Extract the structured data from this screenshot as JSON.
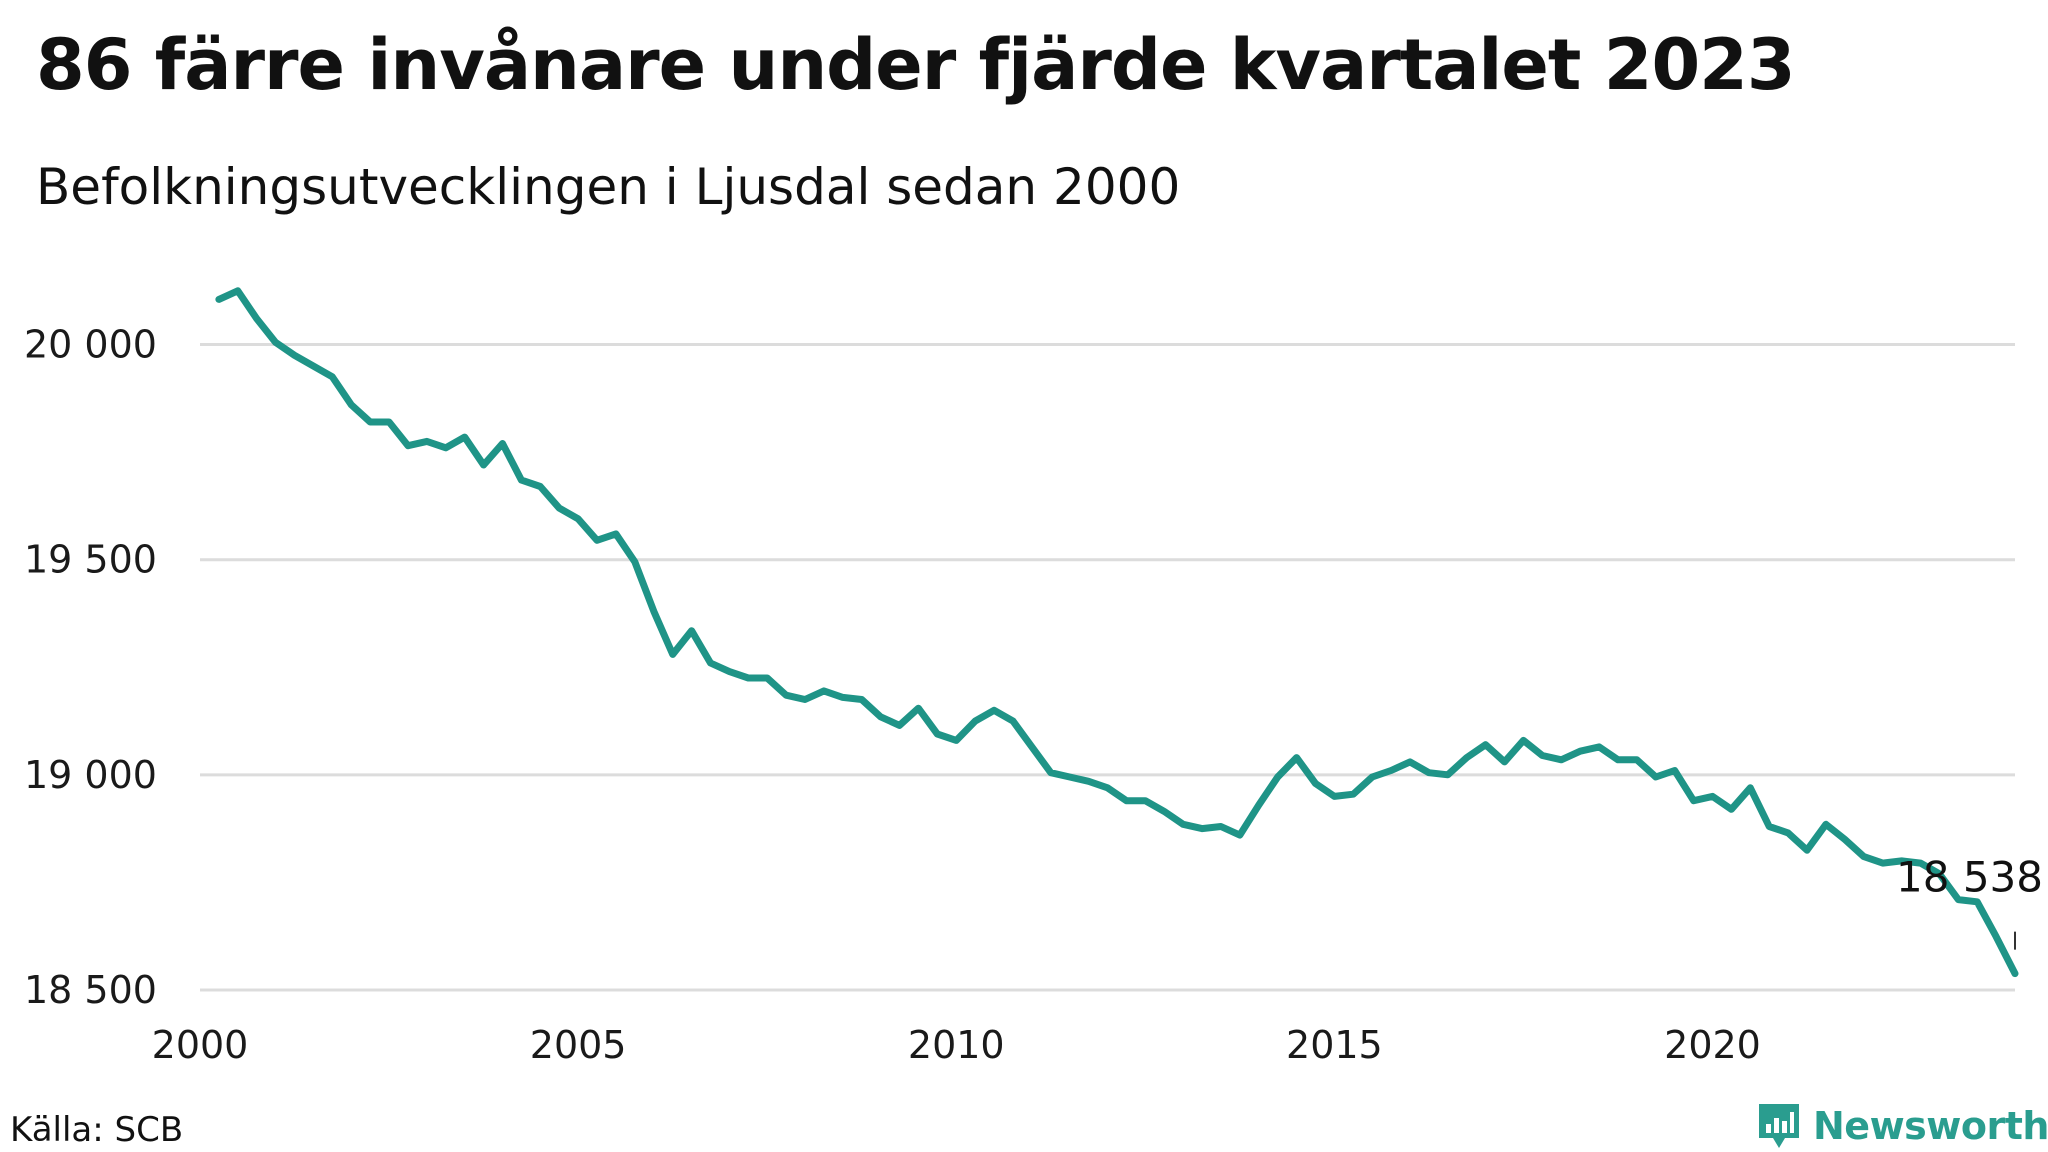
{
  "title": "86 färre invånare under fjärde kvartalet 2023",
  "subtitle": "Befolkningsutvecklingen i Ljusdal sedan 2000",
  "source": "Källa: SCB",
  "brand": {
    "name": "Newsworthy",
    "color": "#2a9d8f"
  },
  "chart_data": {
    "type": "line",
    "title": "86 färre invånare under fjärde kvartalet 2023",
    "subtitle": "Befolkningsutvecklingen i Ljusdal sedan 2000",
    "xlabel": "",
    "ylabel": "",
    "xlim": [
      2000.0,
      2024.0
    ],
    "ylim": [
      18500,
      20150
    ],
    "x_ticks": [
      2000,
      2005,
      2010,
      2015,
      2020
    ],
    "x_tick_labels": [
      "2000",
      "2005",
      "2010",
      "2015",
      "2020"
    ],
    "y_ticks": [
      18500,
      19000,
      19500,
      20000
    ],
    "y_tick_labels": [
      "18 500",
      "19 000",
      "19 500",
      "20 000"
    ],
    "grid": "horizontal",
    "line_color": "#1f9487",
    "series": [
      {
        "values": [
          [
            2000.25,
            20105
          ],
          [
            2000.5,
            20125
          ],
          [
            2000.75,
            20060
          ],
          [
            2001.0,
            20005
          ],
          [
            2001.25,
            19975
          ],
          [
            2001.5,
            19950
          ],
          [
            2001.75,
            19925
          ],
          [
            2002.0,
            19860
          ],
          [
            2002.25,
            19820
          ],
          [
            2002.5,
            19820
          ],
          [
            2002.75,
            19765
          ],
          [
            2003.0,
            19775
          ],
          [
            2003.25,
            19760
          ],
          [
            2003.5,
            19785
          ],
          [
            2003.75,
            19720
          ],
          [
            2004.0,
            19770
          ],
          [
            2004.25,
            19685
          ],
          [
            2004.5,
            19670
          ],
          [
            2004.75,
            19620
          ],
          [
            2005.0,
            19595
          ],
          [
            2005.25,
            19545
          ],
          [
            2005.5,
            19560
          ],
          [
            2005.75,
            19495
          ],
          [
            2006.0,
            19380
          ],
          [
            2006.25,
            19280
          ],
          [
            2006.5,
            19335
          ],
          [
            2006.75,
            19260
          ],
          [
            2007.0,
            19240
          ],
          [
            2007.25,
            19225
          ],
          [
            2007.5,
            19225
          ],
          [
            2007.75,
            19185
          ],
          [
            2008.0,
            19175
          ],
          [
            2008.25,
            19195
          ],
          [
            2008.5,
            19180
          ],
          [
            2008.75,
            19175
          ],
          [
            2009.0,
            19135
          ],
          [
            2009.25,
            19115
          ],
          [
            2009.5,
            19155
          ],
          [
            2009.75,
            19095
          ],
          [
            2010.0,
            19080
          ],
          [
            2010.25,
            19125
          ],
          [
            2010.5,
            19150
          ],
          [
            2010.75,
            19125
          ],
          [
            2011.0,
            19065
          ],
          [
            2011.25,
            19005
          ],
          [
            2011.5,
            18995
          ],
          [
            2011.75,
            18985
          ],
          [
            2012.0,
            18970
          ],
          [
            2012.25,
            18940
          ],
          [
            2012.5,
            18940
          ],
          [
            2012.75,
            18915
          ],
          [
            2013.0,
            18885
          ],
          [
            2013.25,
            18875
          ],
          [
            2013.5,
            18880
          ],
          [
            2013.75,
            18860
          ],
          [
            2014.0,
            18930
          ],
          [
            2014.25,
            18995
          ],
          [
            2014.5,
            19040
          ],
          [
            2014.75,
            18980
          ],
          [
            2015.0,
            18950
          ],
          [
            2015.25,
            18955
          ],
          [
            2015.5,
            18995
          ],
          [
            2015.75,
            19010
          ],
          [
            2016.0,
            19030
          ],
          [
            2016.25,
            19005
          ],
          [
            2016.5,
            19000
          ],
          [
            2016.75,
            19040
          ],
          [
            2017.0,
            19070
          ],
          [
            2017.25,
            19030
          ],
          [
            2017.5,
            19080
          ],
          [
            2017.75,
            19045
          ],
          [
            2018.0,
            19035
          ],
          [
            2018.25,
            19055
          ],
          [
            2018.5,
            19065
          ],
          [
            2018.75,
            19035
          ],
          [
            2019.0,
            19035
          ],
          [
            2019.25,
            18995
          ],
          [
            2019.5,
            19010
          ],
          [
            2019.75,
            18940
          ],
          [
            2020.0,
            18950
          ],
          [
            2020.25,
            18920
          ],
          [
            2020.5,
            18970
          ],
          [
            2020.75,
            18880
          ],
          [
            2021.0,
            18865
          ],
          [
            2021.25,
            18825
          ],
          [
            2021.5,
            18885
          ],
          [
            2021.75,
            18850
          ],
          [
            2022.0,
            18810
          ],
          [
            2022.25,
            18795
          ],
          [
            2022.5,
            18800
          ],
          [
            2022.75,
            18795
          ],
          [
            2023.0,
            18770
          ],
          [
            2023.25,
            18710
          ],
          [
            2023.5,
            18705
          ],
          [
            2023.75,
            18624
          ],
          [
            2024.0,
            18538
          ]
        ]
      }
    ],
    "annotations": [
      {
        "text": "18 538",
        "x": 2024.0,
        "y": 18538
      }
    ]
  }
}
